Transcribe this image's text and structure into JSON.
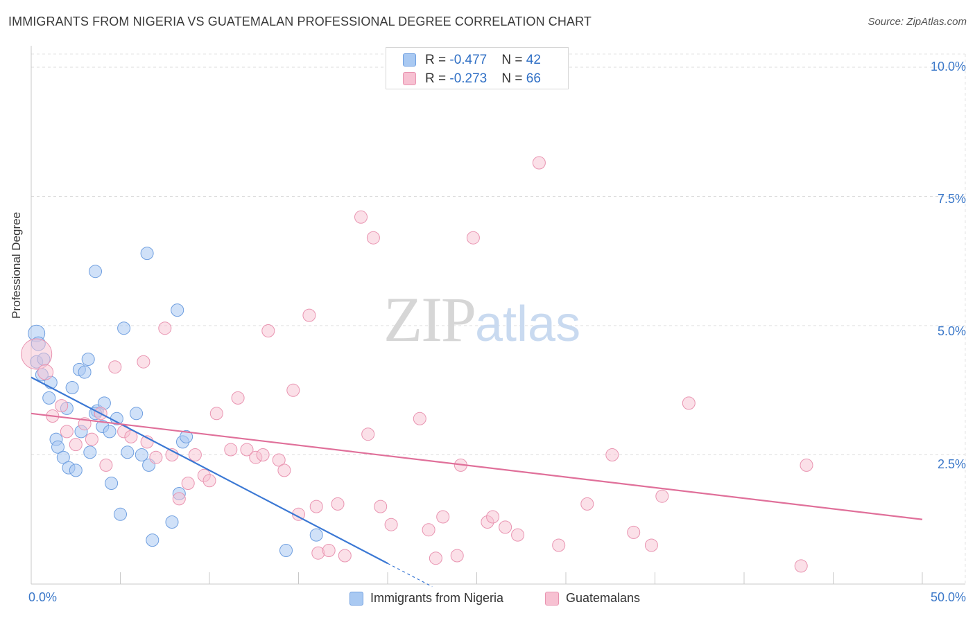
{
  "header": {
    "title": "IMMIGRANTS FROM NIGERIA VS GUATEMALAN PROFESSIONAL DEGREE CORRELATION CHART",
    "source": "Source: ZipAtlas.com"
  },
  "watermark": {
    "zip": "ZIP",
    "atlas": "atlas"
  },
  "legend": {
    "rows": [
      {
        "r_label": "R = ",
        "r_value": "-0.477",
        "n_label": "N = ",
        "n_value": "42",
        "color": "#a9c9f2",
        "border": "#6f9fe0"
      },
      {
        "r_label": "R = ",
        "r_value": "-0.273",
        "n_label": "N = ",
        "n_value": "66",
        "color": "#f7c1d2",
        "border": "#e994b1"
      }
    ],
    "bottom": [
      {
        "label": "Immigrants from Nigeria",
        "color": "#a9c9f2",
        "border": "#6f9fe0"
      },
      {
        "label": "Guatemalans",
        "color": "#f7c1d2",
        "border": "#e994b1"
      }
    ]
  },
  "axes": {
    "ylabel": "Professional Degree",
    "x_min_label": "0.0%",
    "x_max_label": "50.0%",
    "y_ticks": [
      {
        "value": 10.0,
        "label": "10.0%"
      },
      {
        "value": 7.5,
        "label": "7.5%"
      },
      {
        "value": 5.0,
        "label": "5.0%"
      },
      {
        "value": 2.5,
        "label": "2.5%"
      }
    ]
  },
  "chart_data": {
    "type": "scatter",
    "title": "IMMIGRANTS FROM NIGERIA VS GUATEMALAN PROFESSIONAL DEGREE CORRELATION CHART",
    "xlabel": "",
    "ylabel": "Professional Degree",
    "xlim": [
      0,
      50
    ],
    "ylim": [
      0,
      10
    ],
    "grid": true,
    "legend_position": "top-center",
    "series": [
      {
        "name": "Immigrants from Nigeria",
        "color": "#a9c9f2",
        "stroke": "#6f9fe0",
        "line_color": "#3b78d4",
        "r": -0.477,
        "n": 42,
        "trend": {
          "x0": 0.0,
          "y0": 4.0,
          "x1": 20.0,
          "y1": 0.4,
          "dash_to_x": 22.5,
          "dash_to_y": -0.05
        },
        "points": [
          [
            0.3,
            4.85,
            12
          ],
          [
            0.4,
            4.65,
            10
          ],
          [
            0.3,
            4.3,
            9
          ],
          [
            0.7,
            4.35,
            9
          ],
          [
            0.6,
            4.05,
            9
          ],
          [
            1.1,
            3.9,
            9
          ],
          [
            1.0,
            3.6,
            9
          ],
          [
            1.4,
            2.8,
            9
          ],
          [
            1.5,
            2.65,
            9
          ],
          [
            1.8,
            2.45,
            9
          ],
          [
            2.0,
            3.4,
            9
          ],
          [
            2.1,
            2.25,
            9
          ],
          [
            2.3,
            3.8,
            9
          ],
          [
            2.5,
            2.2,
            9
          ],
          [
            2.7,
            4.15,
            9
          ],
          [
            2.8,
            2.95,
            9
          ],
          [
            3.0,
            4.1,
            9
          ],
          [
            3.2,
            4.35,
            9
          ],
          [
            3.3,
            2.55,
            9
          ],
          [
            3.6,
            6.05,
            9
          ],
          [
            3.7,
            3.35,
            9
          ],
          [
            4.0,
            3.05,
            9
          ],
          [
            4.1,
            3.5,
            9
          ],
          [
            4.4,
            2.95,
            9
          ],
          [
            4.5,
            1.95,
            9
          ],
          [
            4.8,
            3.2,
            9
          ],
          [
            5.0,
            1.35,
            9
          ],
          [
            5.2,
            4.95,
            9
          ],
          [
            5.4,
            2.55,
            9
          ],
          [
            5.9,
            3.3,
            9
          ],
          [
            6.2,
            2.5,
            9
          ],
          [
            6.5,
            6.4,
            9
          ],
          [
            6.6,
            2.3,
            9
          ],
          [
            6.8,
            0.85,
            9
          ],
          [
            7.9,
            1.2,
            9
          ],
          [
            8.2,
            5.3,
            9
          ],
          [
            8.3,
            1.75,
            9
          ],
          [
            8.5,
            2.75,
            9
          ],
          [
            8.7,
            2.85,
            9
          ],
          [
            16.0,
            0.95,
            9
          ],
          [
            14.3,
            0.65,
            9
          ],
          [
            3.6,
            3.3,
            9
          ]
        ]
      },
      {
        "name": "Guatemalans",
        "color": "#f7c1d2",
        "stroke": "#e994b1",
        "line_color": "#e0709a",
        "r": -0.273,
        "n": 66,
        "trend": {
          "x0": 0.0,
          "y0": 3.3,
          "x1": 50.0,
          "y1": 1.25
        },
        "points": [
          [
            0.3,
            4.45,
            22
          ],
          [
            0.8,
            4.1,
            11
          ],
          [
            1.2,
            3.25,
            9
          ],
          [
            1.7,
            3.45,
            9
          ],
          [
            2.0,
            2.95,
            9
          ],
          [
            2.5,
            2.7,
            9
          ],
          [
            3.0,
            3.1,
            9
          ],
          [
            3.4,
            2.8,
            9
          ],
          [
            3.9,
            3.3,
            9
          ],
          [
            4.2,
            2.3,
            9
          ],
          [
            4.7,
            4.2,
            9
          ],
          [
            5.2,
            2.95,
            9
          ],
          [
            5.6,
            2.85,
            9
          ],
          [
            6.3,
            4.3,
            9
          ],
          [
            6.5,
            2.75,
            9
          ],
          [
            7.0,
            2.45,
            9
          ],
          [
            7.5,
            4.95,
            9
          ],
          [
            7.9,
            2.5,
            9
          ],
          [
            8.3,
            1.65,
            9
          ],
          [
            8.8,
            1.95,
            9
          ],
          [
            9.2,
            2.5,
            9
          ],
          [
            9.7,
            2.1,
            9
          ],
          [
            10.0,
            2.0,
            9
          ],
          [
            10.4,
            3.3,
            9
          ],
          [
            11.2,
            2.6,
            9
          ],
          [
            11.6,
            3.6,
            9
          ],
          [
            12.1,
            2.6,
            9
          ],
          [
            12.6,
            2.45,
            9
          ],
          [
            13.0,
            2.5,
            9
          ],
          [
            13.3,
            4.9,
            9
          ],
          [
            13.9,
            2.4,
            9
          ],
          [
            14.2,
            2.2,
            9
          ],
          [
            14.7,
            3.75,
            9
          ],
          [
            15.0,
            1.35,
            9
          ],
          [
            15.6,
            5.2,
            9
          ],
          [
            16.0,
            1.5,
            9
          ],
          [
            16.1,
            0.6,
            9
          ],
          [
            16.7,
            0.65,
            9
          ],
          [
            17.2,
            1.55,
            9
          ],
          [
            17.6,
            0.55,
            9
          ],
          [
            18.5,
            7.1,
            9
          ],
          [
            18.9,
            2.9,
            9
          ],
          [
            19.2,
            6.7,
            9
          ],
          [
            19.6,
            1.5,
            9
          ],
          [
            20.2,
            1.15,
            9
          ],
          [
            21.8,
            3.2,
            9
          ],
          [
            22.3,
            1.05,
            9
          ],
          [
            22.7,
            0.5,
            9
          ],
          [
            23.1,
            1.3,
            9
          ],
          [
            23.9,
            0.55,
            9
          ],
          [
            24.1,
            2.3,
            9
          ],
          [
            24.8,
            6.7,
            9
          ],
          [
            25.6,
            1.2,
            9
          ],
          [
            25.9,
            1.3,
            9
          ],
          [
            26.6,
            1.1,
            9
          ],
          [
            27.3,
            0.95,
            9
          ],
          [
            28.5,
            8.15,
            9
          ],
          [
            29.6,
            0.75,
            9
          ],
          [
            31.2,
            1.55,
            9
          ],
          [
            32.6,
            2.5,
            9
          ],
          [
            33.8,
            1.0,
            9
          ],
          [
            34.8,
            0.75,
            9
          ],
          [
            35.4,
            1.7,
            9
          ],
          [
            36.9,
            3.5,
            9
          ],
          [
            43.2,
            0.35,
            9
          ],
          [
            43.5,
            2.3,
            9
          ]
        ]
      }
    ]
  }
}
